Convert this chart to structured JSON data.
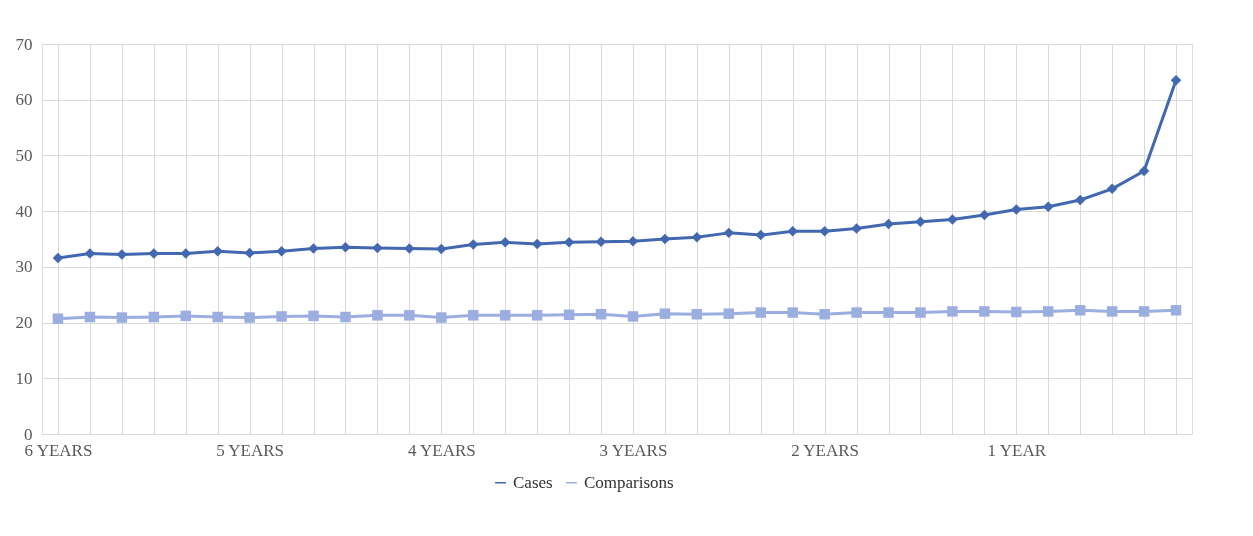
{
  "chart_data": {
    "type": "line",
    "categories": [
      "6 YEARS",
      null,
      null,
      null,
      null,
      null,
      "5 YEARS",
      null,
      null,
      null,
      null,
      null,
      "4 YEARS",
      null,
      null,
      null,
      null,
      null,
      "3 YEARS",
      null,
      null,
      null,
      null,
      null,
      "2 YEARS",
      null,
      null,
      null,
      null,
      null,
      "1 YEAR",
      null,
      null,
      null,
      null,
      null
    ],
    "series": [
      {
        "name": "Cases",
        "color": "#4268b0",
        "marker": "diamond",
        "values": [
          31.6,
          32.4,
          32.2,
          32.4,
          32.4,
          32.8,
          32.5,
          32.8,
          33.3,
          33.5,
          33.4,
          33.3,
          33.2,
          34.0,
          34.4,
          34.1,
          34.4,
          34.5,
          34.6,
          35.0,
          35.3,
          36.1,
          35.7,
          36.4,
          36.4,
          36.9,
          37.7,
          38.1,
          38.5,
          39.3,
          40.3,
          40.8,
          42.0,
          44.0,
          47.2,
          63.5
        ]
      },
      {
        "name": "Comparisons",
        "color": "#9aaee0",
        "marker": "square",
        "values": [
          20.7,
          21.0,
          20.9,
          21.0,
          21.2,
          21.0,
          20.9,
          21.1,
          21.2,
          21.0,
          21.3,
          21.3,
          20.9,
          21.3,
          21.3,
          21.3,
          21.4,
          21.5,
          21.1,
          21.6,
          21.5,
          21.6,
          21.8,
          21.8,
          21.5,
          21.8,
          21.8,
          21.8,
          22.0,
          22.0,
          21.9,
          22.0,
          22.2,
          22.0,
          22.0,
          22.2
        ]
      }
    ],
    "ylim": [
      0,
      70
    ],
    "yticks": [
      0,
      10,
      20,
      30,
      40,
      50,
      60,
      70
    ],
    "grid": true,
    "legend": "bottom",
    "line_style": "solid"
  }
}
